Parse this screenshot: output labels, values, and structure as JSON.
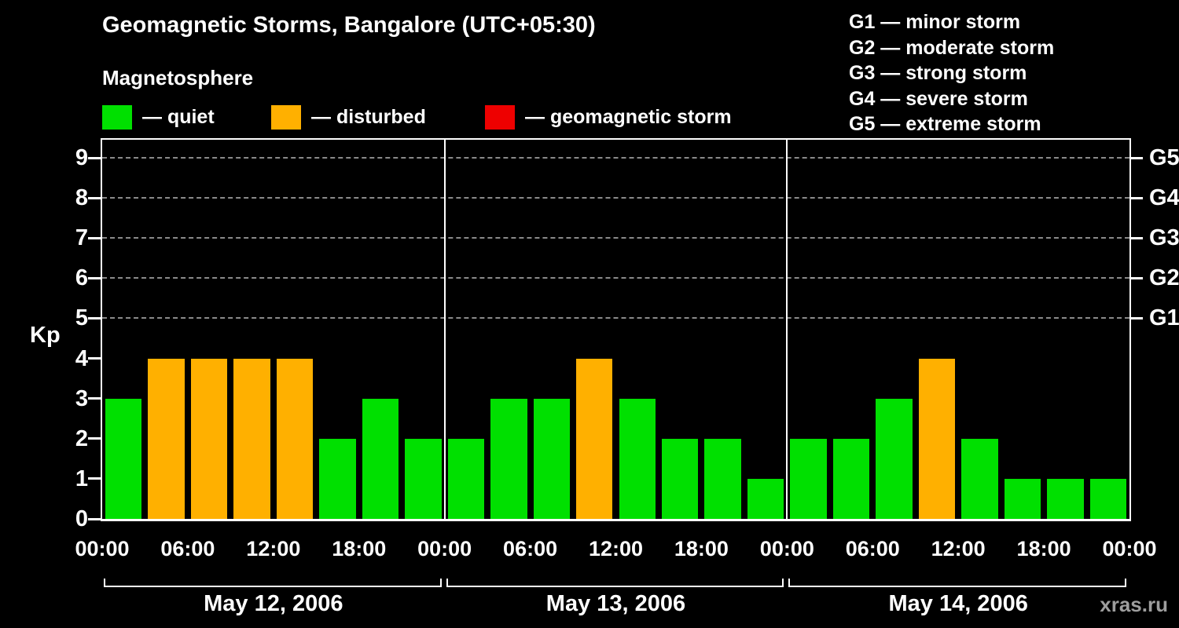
{
  "title": "Geomagnetic Storms, Bangalore (UTC+05:30)",
  "subtitle": "Magnetosphere",
  "kp_axis_label": "Kp",
  "watermark": "xras.ru",
  "legend": {
    "items": [
      {
        "key": "quiet",
        "label": "— quiet",
        "color": "#00e000"
      },
      {
        "key": "disturbed",
        "label": "— disturbed",
        "color": "#ffb000"
      },
      {
        "key": "storm",
        "label": "— geomagnetic storm",
        "color": "#ee0000"
      }
    ]
  },
  "g_legend": [
    "G1 — minor storm",
    "G2 — moderate storm",
    "G3 — strong storm",
    "G4 — severe storm",
    "G5 — extreme storm"
  ],
  "chart_data": {
    "type": "bar",
    "title": "Geomagnetic Storms, Bangalore (UTC+05:30)",
    "ylabel": "Kp",
    "ylim": [
      0,
      9.4
    ],
    "y_ticks": [
      0,
      1,
      2,
      3,
      4,
      5,
      6,
      7,
      8,
      9
    ],
    "grid_levels": [
      5,
      6,
      7,
      8,
      9
    ],
    "grid_style": "dashed horizontal lines at G-storm levels",
    "bar_interval_hours": 3,
    "x_tick_labels": [
      "00:00",
      "06:00",
      "12:00",
      "18:00",
      "00:00",
      "06:00",
      "12:00",
      "18:00",
      "00:00",
      "06:00",
      "12:00",
      "18:00",
      "00:00"
    ],
    "right_axis": [
      {
        "label": "G1",
        "kp": 5
      },
      {
        "label": "G2",
        "kp": 6
      },
      {
        "label": "G3",
        "kp": 7
      },
      {
        "label": "G4",
        "kp": 8
      },
      {
        "label": "G5",
        "kp": 9
      }
    ],
    "days": [
      {
        "label": "May 12, 2006",
        "kp": [
          3,
          4,
          4,
          4,
          4,
          2,
          3,
          2
        ]
      },
      {
        "label": "May 13, 2006",
        "kp": [
          2,
          3,
          3,
          4,
          3,
          2,
          2,
          1
        ]
      },
      {
        "label": "May 14, 2006",
        "kp": [
          2,
          2,
          3,
          4,
          2,
          1,
          1,
          1
        ]
      }
    ],
    "status_thresholds": {
      "disturbed_min_kp": 4,
      "storm_min_kp": 5
    },
    "colors": {
      "quiet": "#00e000",
      "disturbed": "#ffb000",
      "storm": "#ee0000"
    },
    "legend_position": "top-left"
  }
}
